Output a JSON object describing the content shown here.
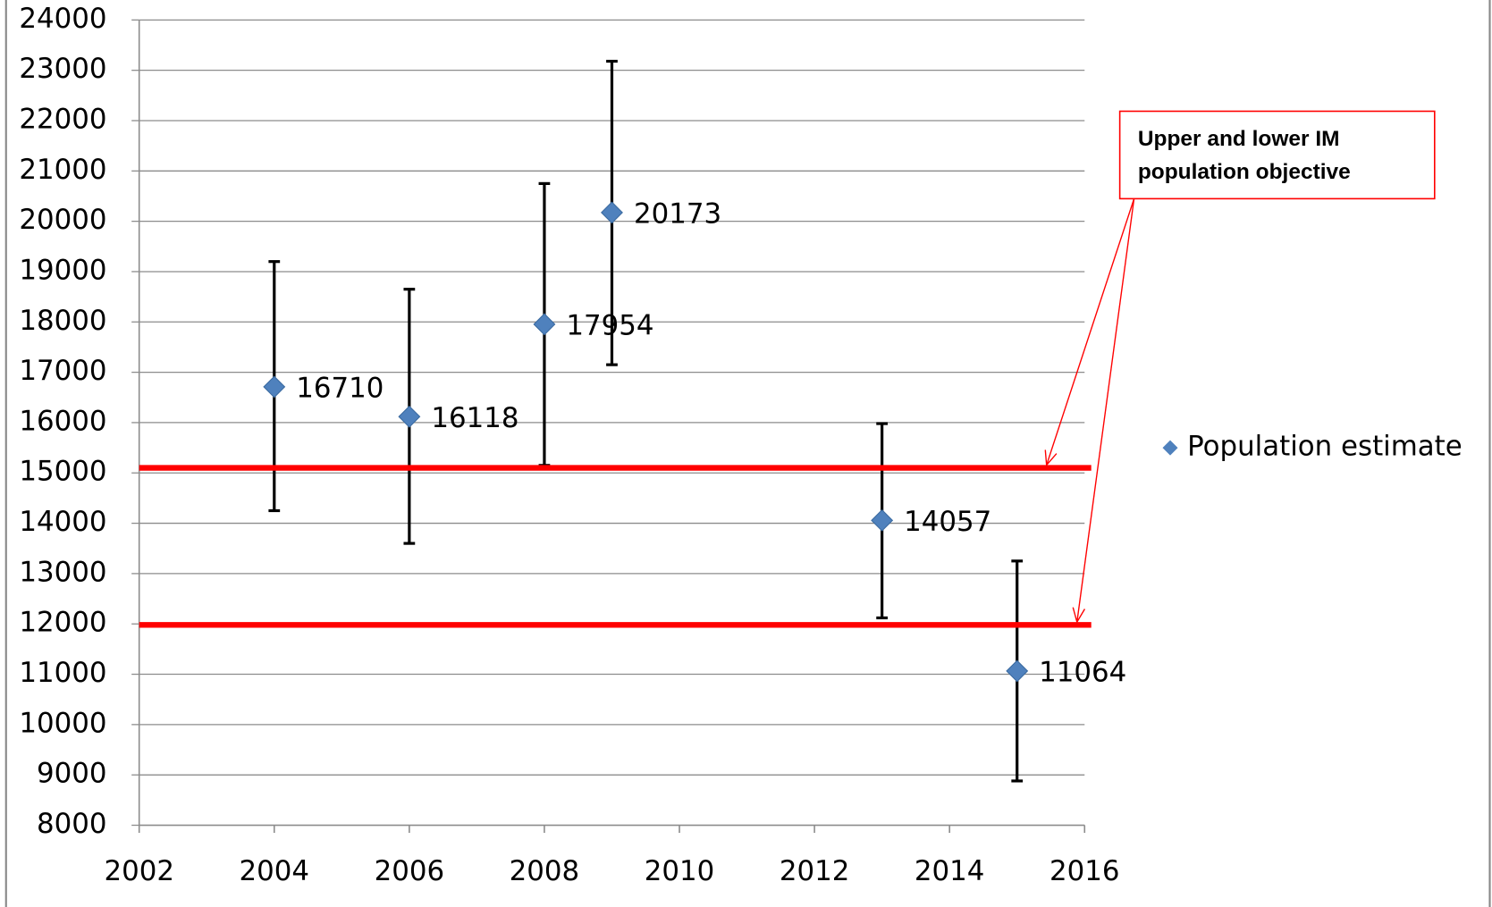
{
  "chart_data": {
    "type": "scatter",
    "x": [
      2004,
      2006,
      2008,
      2009,
      2013,
      2015
    ],
    "series": [
      {
        "name": "Population estimate",
        "color": "#4f81bd",
        "values": [
          16710,
          16118,
          17954,
          20173,
          14057,
          11064
        ],
        "error_low": [
          14250,
          13600,
          15150,
          17150,
          12120,
          8880
        ],
        "error_high": [
          19200,
          18650,
          20750,
          23180,
          15980,
          13250
        ]
      }
    ],
    "hlines": [
      {
        "value": 15100,
        "color": "#ff0000"
      },
      {
        "value": 11980,
        "color": "#ff0000"
      }
    ],
    "annotation": {
      "lines": [
        "Upper and lower IM",
        "population objective"
      ],
      "color": "#ff0000"
    },
    "xlim": [
      2002,
      2016
    ],
    "xticks": [
      2002,
      2004,
      2006,
      2008,
      2010,
      2012,
      2014,
      2016
    ],
    "ylim": [
      8000,
      24000
    ],
    "yticks": [
      8000,
      9000,
      10000,
      11000,
      12000,
      13000,
      14000,
      15000,
      16000,
      17000,
      18000,
      19000,
      20000,
      21000,
      22000,
      23000,
      24000
    ],
    "grid": true,
    "legend": "right"
  }
}
